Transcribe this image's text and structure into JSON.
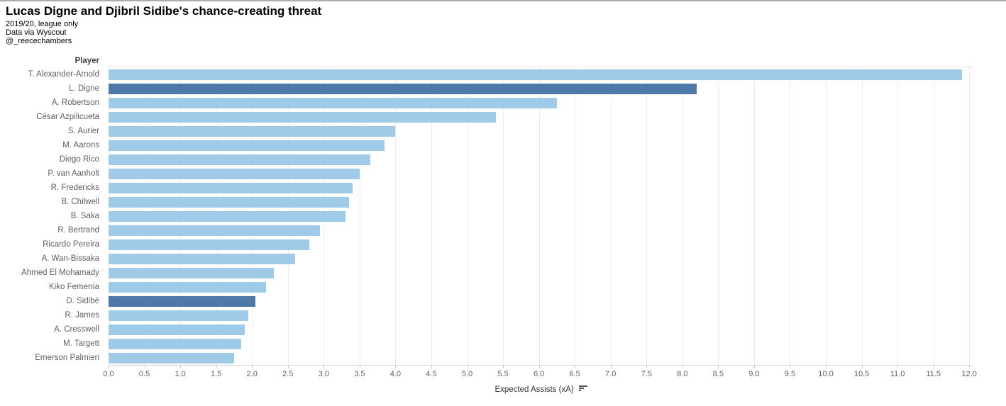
{
  "header": {
    "title": "Lucas Digne and Djibril Sidibe's chance-creating threat",
    "subtitle_lines": [
      "2019/20, league only",
      "Data via Wyscout",
      "@_reecechambers"
    ]
  },
  "chart_data": {
    "type": "bar",
    "orientation": "horizontal",
    "title": "Lucas Digne and Djibril Sidibe's chance-creating threat",
    "row_field_label": "Player",
    "xlabel": "Expected Assists (xA)",
    "xlim": [
      0,
      12
    ],
    "xtick_step": 0.5,
    "xticks": [
      "0.0",
      "0.5",
      "1.0",
      "1.5",
      "2.0",
      "2.5",
      "3.0",
      "3.5",
      "4.0",
      "4.5",
      "5.0",
      "5.5",
      "6.0",
      "6.5",
      "7.0",
      "7.5",
      "8.0",
      "8.5",
      "9.0",
      "9.5",
      "10.0",
      "10.5",
      "11.0",
      "11.5",
      "12.0"
    ],
    "grid": "vertical-light",
    "legend": "none",
    "sort": "descending-by-value",
    "categories": [
      "T. Alexander-Arnold",
      "L. Digne",
      "A. Robertson",
      "César Azpilicueta",
      "S. Aurier",
      "M. Aarons",
      "Diego Rico",
      "P. van Aanholt",
      "R. Fredericks",
      "B. Chilwell",
      "B. Saka",
      "R. Bertrand",
      "Ricardo Pereira",
      "A. Wan-Bissaka",
      "Ahmed El Mohamady",
      "Kiko Femenía",
      "D. Sidibé",
      "R. James",
      "A. Cresswell",
      "M. Targett",
      "Emerson Palmieri"
    ],
    "values": [
      11.9,
      8.2,
      6.25,
      5.4,
      4.0,
      3.85,
      3.65,
      3.5,
      3.4,
      3.35,
      3.3,
      2.95,
      2.8,
      2.6,
      2.3,
      2.2,
      2.05,
      1.95,
      1.9,
      1.85,
      1.75
    ],
    "highlighted_players": [
      "L. Digne",
      "D. Sidibé"
    ],
    "colors": {
      "bar": "#a0cbe8",
      "bar_highlight": "#4e79a7",
      "grid": "#ececec",
      "axis": "#d4d4d4",
      "row_label": "#5f5f5f",
      "tick_label": "#5f5f5f",
      "field_label": "#423f3f",
      "title": "#000000"
    }
  }
}
